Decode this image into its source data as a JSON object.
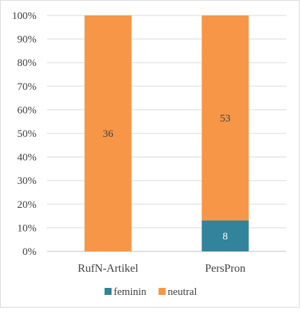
{
  "chart_data": {
    "type": "bar",
    "stacked": true,
    "percent_stacked": true,
    "categories": [
      "RufN-Artikel",
      "PersPron"
    ],
    "series": [
      {
        "name": "feminin",
        "color": "#31849b",
        "values": [
          0,
          8
        ],
        "labels": [
          "",
          "8"
        ],
        "label_color": "#ffffff"
      },
      {
        "name": "neutral",
        "color": "#f79646",
        "values": [
          36,
          53
        ],
        "labels": [
          "36",
          "53"
        ],
        "label_color": "#404040"
      }
    ],
    "y_ticks": [
      "0%",
      "10%",
      "20%",
      "30%",
      "40%",
      "50%",
      "60%",
      "70%",
      "80%",
      "90%",
      "100%"
    ],
    "ylim": [
      0,
      100
    ],
    "grid": true,
    "legend_position": "bottom",
    "title": "",
    "xlabel": "",
    "ylabel": ""
  }
}
